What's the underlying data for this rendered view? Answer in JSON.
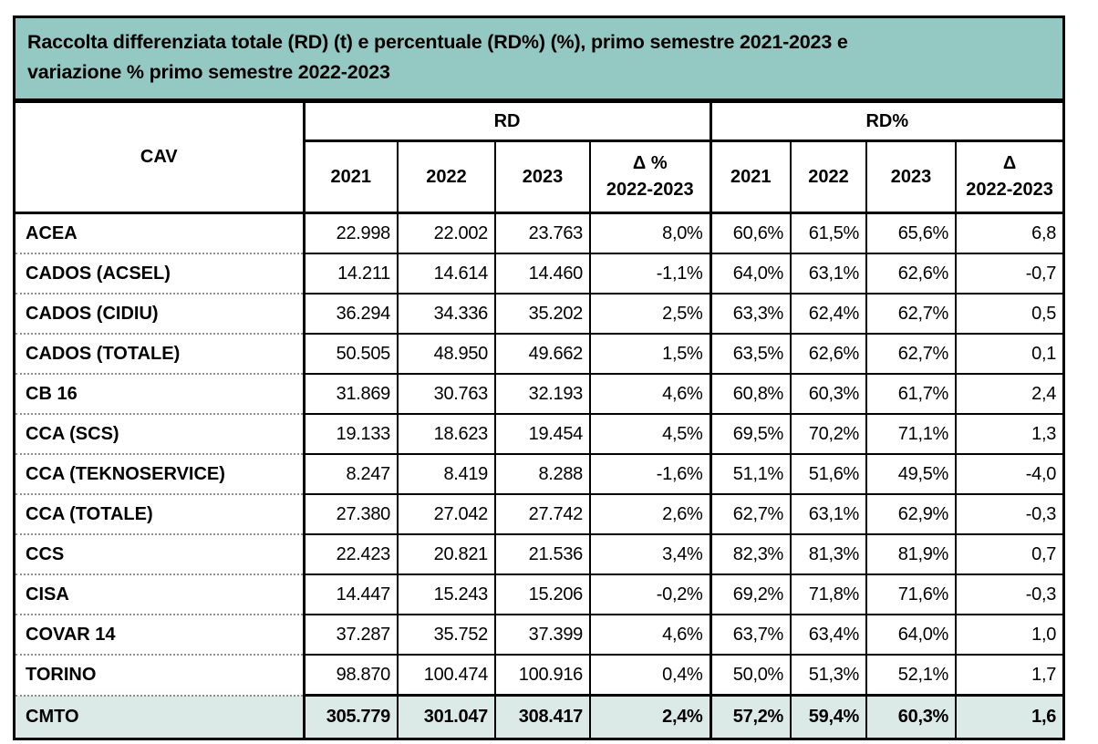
{
  "title": {
    "line1": "Raccolta differenziata totale (RD) (t) e percentuale (RD%) (%), primo semestre 2021-2023 e",
    "line2": "variazione % primo semestre 2022-2023"
  },
  "colors": {
    "title_bg": "#93c9c2",
    "total_row_bg": "#dbe9e7",
    "border": "#000000",
    "dotted_separator": "#8f8f8f",
    "text": "#000000"
  },
  "table": {
    "cav_header": "CAV",
    "groups": {
      "rd": "RD",
      "rdp": "RD%"
    },
    "rd_year_headers": [
      "2021",
      "2022",
      "2023"
    ],
    "rd_delta_header": {
      "line1": "Δ %",
      "line2": "2022-2023"
    },
    "rdp_year_headers": [
      "2021",
      "2022",
      "2023"
    ],
    "rdp_delta_header": {
      "line1": "Δ",
      "line2": "2022-2023"
    },
    "rows": [
      {
        "label": "ACEA",
        "rd": [
          "22.998",
          "22.002",
          "23.763",
          "8,0%"
        ],
        "rdp": [
          "60,6%",
          "61,5%",
          "65,6%",
          "6,8"
        ],
        "is_total": false
      },
      {
        "label": "CADOS (ACSEL)",
        "rd": [
          "14.211",
          "14.614",
          "14.460",
          "-1,1%"
        ],
        "rdp": [
          "64,0%",
          "63,1%",
          "62,6%",
          "-0,7"
        ],
        "is_total": false
      },
      {
        "label": "CADOS (CIDIU)",
        "rd": [
          "36.294",
          "34.336",
          "35.202",
          "2,5%"
        ],
        "rdp": [
          "63,3%",
          "62,4%",
          "62,7%",
          "0,5"
        ],
        "is_total": false
      },
      {
        "label": "CADOS (TOTALE)",
        "rd": [
          "50.505",
          "48.950",
          "49.662",
          "1,5%"
        ],
        "rdp": [
          "63,5%",
          "62,6%",
          "62,7%",
          "0,1"
        ],
        "is_total": false
      },
      {
        "label": "CB 16",
        "rd": [
          "31.869",
          "30.763",
          "32.193",
          "4,6%"
        ],
        "rdp": [
          "60,8%",
          "60,3%",
          "61,7%",
          "2,4"
        ],
        "is_total": false
      },
      {
        "label": "CCA (SCS)",
        "rd": [
          "19.133",
          "18.623",
          "19.454",
          "4,5%"
        ],
        "rdp": [
          "69,5%",
          "70,2%",
          "71,1%",
          "1,3"
        ],
        "is_total": false
      },
      {
        "label": "CCA (TEKNOSERVICE)",
        "rd": [
          "8.247",
          "8.419",
          "8.288",
          "-1,6%"
        ],
        "rdp": [
          "51,1%",
          "51,6%",
          "49,5%",
          "-4,0"
        ],
        "is_total": false
      },
      {
        "label": "CCA (TOTALE)",
        "rd": [
          "27.380",
          "27.042",
          "27.742",
          "2,6%"
        ],
        "rdp": [
          "62,7%",
          "63,1%",
          "62,9%",
          "-0,3"
        ],
        "is_total": false
      },
      {
        "label": "CCS",
        "rd": [
          "22.423",
          "20.821",
          "21.536",
          "3,4%"
        ],
        "rdp": [
          "82,3%",
          "81,3%",
          "81,9%",
          "0,7"
        ],
        "is_total": false
      },
      {
        "label": "CISA",
        "rd": [
          "14.447",
          "15.243",
          "15.206",
          "-0,2%"
        ],
        "rdp": [
          "69,2%",
          "71,8%",
          "71,6%",
          "-0,3"
        ],
        "is_total": false
      },
      {
        "label": "COVAR 14",
        "rd": [
          "37.287",
          "35.752",
          "37.399",
          "4,6%"
        ],
        "rdp": [
          "63,7%",
          "63,4%",
          "64,0%",
          "1,0"
        ],
        "is_total": false
      },
      {
        "label": "TORINO",
        "rd": [
          "98.870",
          "100.474",
          "100.916",
          "0,4%"
        ],
        "rdp": [
          "50,0%",
          "51,3%",
          "52,1%",
          "1,7"
        ],
        "is_total": false
      },
      {
        "label": "CMTO",
        "rd": [
          "305.779",
          "301.047",
          "308.417",
          "2,4%"
        ],
        "rdp": [
          "57,2%",
          "59,4%",
          "60,3%",
          "1,6"
        ],
        "is_total": true
      }
    ]
  }
}
